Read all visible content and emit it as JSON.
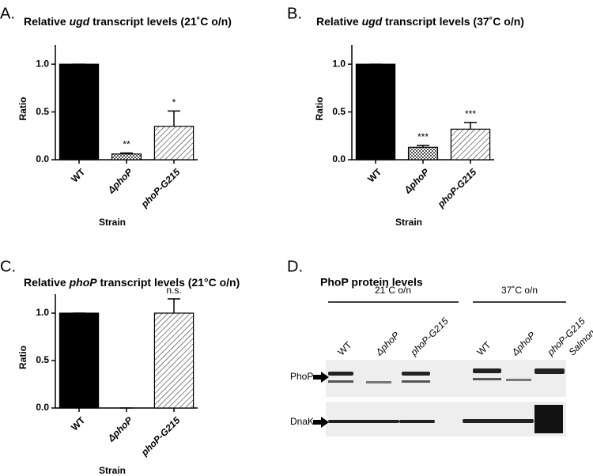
{
  "chart_data": [
    {
      "type": "bar",
      "panel": "A.",
      "title": [
        {
          "text": "Relative "
        },
        {
          "text": "ugd",
          "italic": true
        },
        {
          "text": " transcript levels (21˚C o/n)"
        }
      ],
      "categories": [
        "WT",
        "ΔphoP",
        "phoP-G215"
      ],
      "category_italic": [
        false,
        true,
        true
      ],
      "values": [
        1.0,
        0.06,
        0.35
      ],
      "errors": [
        0,
        0.01,
        0.16
      ],
      "annotations": [
        null,
        "**",
        "*"
      ],
      "patterns": [
        "solid",
        "checker",
        "hatch"
      ],
      "xlabel": "Strain",
      "ylabel": "Ratio",
      "ylim": [
        0,
        1.2
      ],
      "yticks": [
        {
          "value": 0,
          "label": "0.0"
        },
        {
          "value": 0.5,
          "label": "0.5"
        },
        {
          "value": 1,
          "label": "1.0"
        }
      ]
    },
    {
      "type": "bar",
      "panel": "B.",
      "title": [
        {
          "text": "Relative "
        },
        {
          "text": "ugd",
          "italic": true
        },
        {
          "text": " transcript levels (37˚C o/n)"
        }
      ],
      "categories": [
        "WT",
        "ΔphoP",
        "phoP-G215"
      ],
      "category_italic": [
        false,
        true,
        true
      ],
      "values": [
        1.0,
        0.13,
        0.32
      ],
      "errors": [
        0,
        0.02,
        0.07
      ],
      "annotations": [
        null,
        "***",
        "***"
      ],
      "patterns": [
        "solid",
        "checker",
        "hatch"
      ],
      "xlabel": "Strain",
      "ylabel": "Ratio",
      "ylim": [
        0,
        1.2
      ],
      "yticks": [
        {
          "value": 0,
          "label": "0.0"
        },
        {
          "value": 0.5,
          "label": "0.5"
        },
        {
          "value": 1,
          "label": "1.0"
        }
      ]
    },
    {
      "type": "bar",
      "panel": "C.",
      "title": [
        {
          "text": "Relative "
        },
        {
          "text": "phoP",
          "italic": true
        },
        {
          "text": " transcript levels (21°C o/n)"
        }
      ],
      "categories": [
        "WT",
        "ΔphoP",
        "phoP-G215"
      ],
      "category_italic": [
        false,
        true,
        true
      ],
      "values": [
        1.0,
        0,
        1.0
      ],
      "errors": [
        0,
        0,
        0.15
      ],
      "annotations": [
        null,
        null,
        "n.s."
      ],
      "patterns": [
        "solid",
        "checker",
        "hatch"
      ],
      "xlabel": "Strain",
      "ylabel": "Ratio",
      "ylim": [
        0,
        1.2
      ],
      "yticks": [
        {
          "value": 0,
          "label": "0.0"
        },
        {
          "value": 0.5,
          "label": "0.5"
        },
        {
          "value": 1,
          "label": "1.0"
        }
      ]
    }
  ],
  "blot": {
    "panel": "D.",
    "title": "PhoP protein levels",
    "groups": [
      "21˚C o/n",
      "37˚C o/n"
    ],
    "lanes": [
      "WT",
      "ΔphoP",
      "phoP-G215",
      "WT",
      "ΔphoP",
      "phoP-G215",
      "Salmonella"
    ],
    "lane_italic": [
      false,
      true,
      true,
      false,
      true,
      true,
      true
    ],
    "rows": [
      "PhoP",
      "DnaK"
    ]
  }
}
